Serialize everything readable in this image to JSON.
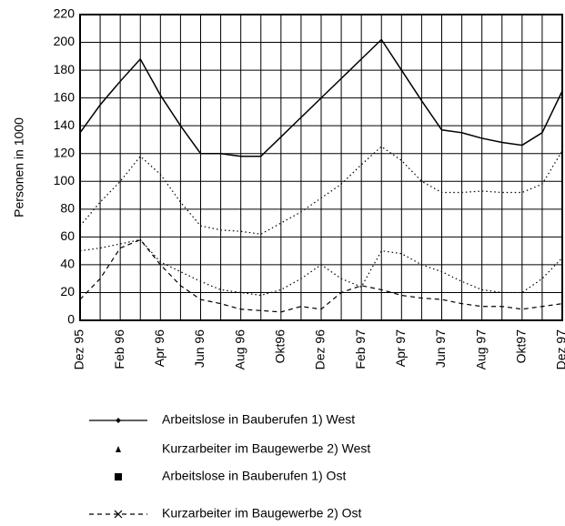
{
  "chart_data": {
    "type": "line",
    "ylabel": "Personen in 1000",
    "categories": [
      "Dez 95",
      null,
      "Feb 96",
      null,
      "Apr 96",
      null,
      "Jun 96",
      null,
      "Aug 96",
      null,
      "Okt96",
      null,
      "Dez 96",
      null,
      "Feb 97",
      null,
      "Apr 97",
      null,
      "Jun 97",
      null,
      "Aug 97",
      null,
      "Okt97",
      null,
      "Dez 97"
    ],
    "series": [
      {
        "name": "Arbeitslose in Bauberufen 1) West",
        "color": "#000000",
        "style": "solid",
        "marker": "diamond",
        "values": [
          135,
          155,
          172,
          188,
          162,
          140,
          120,
          120,
          118,
          118,
          132,
          146,
          160,
          174,
          188,
          202,
          180,
          158,
          137,
          135,
          131,
          128,
          126,
          135,
          165
        ]
      },
      {
        "name": "Kurzarbeiter im Baugewerbe 2) West",
        "color": "#000000",
        "style": "dotted",
        "marker": "triangle",
        "values": [
          68,
          85,
          100,
          118,
          105,
          85,
          68,
          65,
          64,
          62,
          70,
          78,
          88,
          98,
          112,
          125,
          115,
          100,
          92,
          92,
          93,
          92,
          92,
          98,
          122
        ]
      },
      {
        "name": "Arbeitslose in Bauberufen 1) Ost",
        "color": "#000000",
        "style": "dotted",
        "marker": "square",
        "values": [
          50,
          52,
          55,
          58,
          42,
          35,
          28,
          22,
          20,
          18,
          22,
          30,
          40,
          30,
          24,
          50,
          48,
          40,
          35,
          28,
          22,
          20,
          20,
          30,
          45
        ]
      },
      {
        "name": "Kurzarbeiter im Baugewerbe 2) Ost",
        "color": "#000000",
        "style": "dashed",
        "marker": "x",
        "values": [
          15,
          30,
          52,
          58,
          40,
          25,
          15,
          12,
          8,
          7,
          6,
          10,
          8,
          20,
          25,
          22,
          18,
          16,
          15,
          12,
          10,
          10,
          8,
          10,
          12
        ]
      }
    ],
    "ylim": [
      0,
      220
    ],
    "yticks": [
      0,
      20,
      40,
      60,
      80,
      100,
      120,
      140,
      160,
      180,
      200,
      220
    ],
    "grid": true
  }
}
